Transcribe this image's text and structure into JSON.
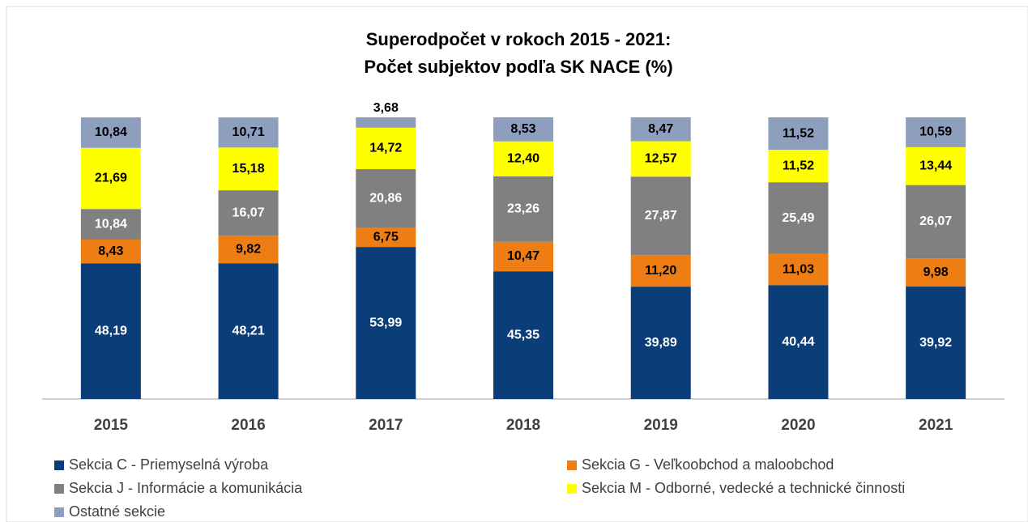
{
  "chart_data": {
    "type": "stacked_bar",
    "title": [
      "Superodpočet v rokoch 2015 - 2021:",
      "Počet subjektov podľa SK NACE (%)"
    ],
    "categories": [
      "2015",
      "2016",
      "2017",
      "2018",
      "2019",
      "2020",
      "2021"
    ],
    "ylim": [
      0,
      100
    ],
    "series": [
      {
        "name": "Sekcia C - Priemyselná výroba",
        "color": "#0b3d78",
        "values": [
          48.19,
          48.21,
          53.99,
          45.35,
          39.89,
          40.44,
          39.92
        ],
        "value_labels": [
          "48,19",
          "48,21",
          "53,99",
          "45,35",
          "39,89",
          "40,44",
          "39,92"
        ]
      },
      {
        "name": "Sekcia G - Veľkoobchod a maloobchod",
        "color": "#ee7d14",
        "values": [
          8.43,
          9.82,
          6.75,
          10.47,
          11.2,
          11.03,
          9.98
        ],
        "value_labels": [
          "8,43",
          "9,82",
          "6,75",
          "10,47",
          "11,20",
          "11,03",
          "9,98"
        ]
      },
      {
        "name": "Sekcia J - Informácie a komunikácia",
        "color": "#808080",
        "values": [
          10.84,
          16.07,
          20.86,
          23.26,
          27.87,
          25.49,
          26.07
        ],
        "value_labels": [
          "10,84",
          "16,07",
          "20,86",
          "23,26",
          "27,87",
          "25,49",
          "26,07"
        ]
      },
      {
        "name": "Sekcia M - Odborné, vedecké a technické činnosti",
        "color": "#ffff00",
        "values": [
          21.69,
          15.18,
          14.72,
          12.4,
          12.57,
          11.52,
          13.44
        ],
        "value_labels": [
          "21,69",
          "15,18",
          "14,72",
          "12,40",
          "12,57",
          "11,52",
          "13,44"
        ]
      },
      {
        "name": "Ostatné sekcie",
        "color": "#8e9fbe",
        "values": [
          10.84,
          10.71,
          3.68,
          8.53,
          8.47,
          11.52,
          10.59
        ],
        "value_labels": [
          "10,84",
          "10,71",
          "3,68",
          "8,53",
          "8,47",
          "11,52",
          "10,59"
        ]
      }
    ]
  }
}
